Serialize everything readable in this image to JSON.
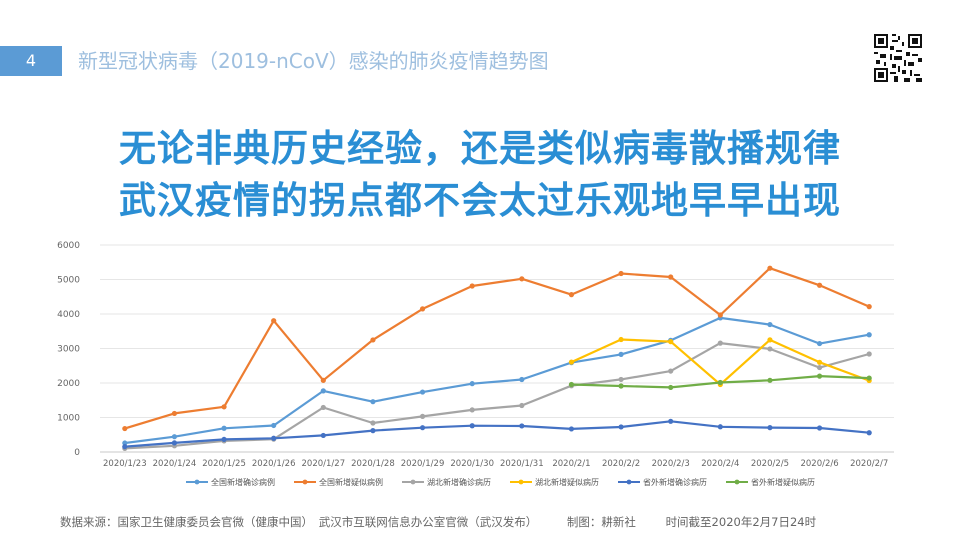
{
  "slide": {
    "number": "4",
    "title": "新型冠状病毒（2019-nCoV）感染的肺炎疫情趋势图"
  },
  "headline": {
    "line1": "无论非典历史经验，还是类似病毒散播规律",
    "line2": "武汉疫情的拐点都不会太过乐观地早早出现"
  },
  "source": {
    "data_source": "数据来源：国家卫生健康委员会官微（健康中国）　武汉市互联网信息办公室官微（武汉发布）",
    "chart_by": "制图：耕新社",
    "cutoff": "时间截至2020年2月7日24时"
  },
  "icons": {
    "qr": "qr-code-icon"
  },
  "chart_data": {
    "type": "line",
    "title": "",
    "xlabel": "",
    "ylabel": "",
    "ylim": [
      0,
      6000
    ],
    "yticks": [
      0,
      1000,
      2000,
      3000,
      4000,
      5000,
      6000
    ],
    "grid": true,
    "legend_position": "bottom",
    "categories": [
      "2020/1/23",
      "2020/1/24",
      "2020/1/25",
      "2020/1/26",
      "2020/1/27",
      "2020/1/28",
      "2020/1/29",
      "2020/1/30",
      "2020/1/31",
      "2020/2/1",
      "2020/2/2",
      "2020/2/3",
      "2020/2/4",
      "2020/2/5",
      "2020/2/6",
      "2020/2/7"
    ],
    "series": [
      {
        "name": "全国新增确诊病例",
        "color": "#5b9bd5",
        "values": [
          260,
          444,
          688,
          769,
          1771,
          1459,
          1737,
          1981,
          2102,
          2590,
          2829,
          3235,
          3887,
          3694,
          3143,
          3399
        ]
      },
      {
        "name": "全国新增疑似病例",
        "color": "#ed7d31",
        "values": [
          680,
          1118,
          1309,
          3806,
          2077,
          3248,
          4148,
          4812,
          5019,
          4562,
          5173,
          5072,
          3971,
          5328,
          4833,
          4214
        ]
      },
      {
        "name": "湖北新增确诊病历",
        "color": "#a5a5a5",
        "values": [
          105,
          180,
          323,
          371,
          1291,
          840,
          1032,
          1220,
          1347,
          1921,
          2103,
          2345,
          3156,
          2987,
          2447,
          2841
        ]
      },
      {
        "name": "湖北新增疑似病历",
        "color": "#ffc000",
        "values": [
          null,
          null,
          null,
          null,
          null,
          null,
          null,
          null,
          null,
          2606,
          3260,
          3200,
          1957,
          3250,
          2600,
          2071
        ]
      },
      {
        "name": "省外新增确诊病历",
        "color": "#4472c4",
        "values": [
          155,
          264,
          365,
          398,
          480,
          619,
          705,
          761,
          755,
          669,
          726,
          890,
          731,
          707,
          696,
          558
        ]
      },
      {
        "name": "省外新增疑似病历",
        "color": "#70ad47",
        "values": [
          null,
          null,
          null,
          null,
          null,
          null,
          null,
          null,
          null,
          1956,
          1913,
          1872,
          2014,
          2078,
          2200,
          2143
        ]
      }
    ]
  }
}
